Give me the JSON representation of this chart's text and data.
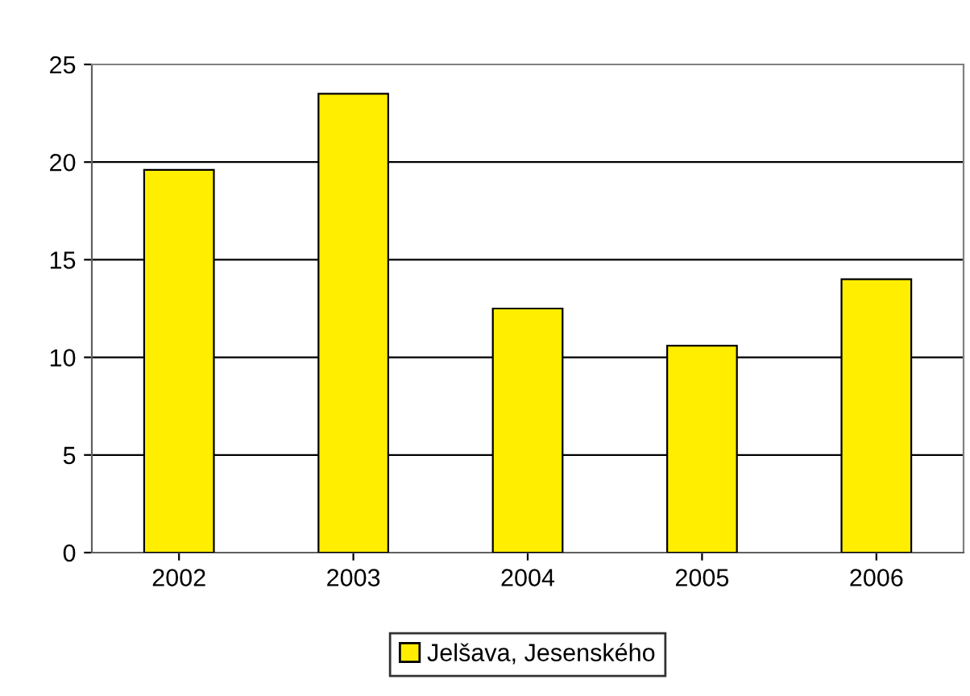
{
  "chart_data": {
    "type": "bar",
    "categories": [
      "2002",
      "2003",
      "2004",
      "2005",
      "2006"
    ],
    "series": [
      {
        "name": "Jelšava, Jesenského",
        "color": "#ffee00",
        "values": [
          19.6,
          23.5,
          12.5,
          10.6,
          14.0
        ]
      }
    ],
    "ylim": [
      0,
      25
    ],
    "yticks": [
      0,
      5,
      10,
      15,
      20,
      25
    ],
    "grid": "y",
    "legend": "bottom"
  }
}
